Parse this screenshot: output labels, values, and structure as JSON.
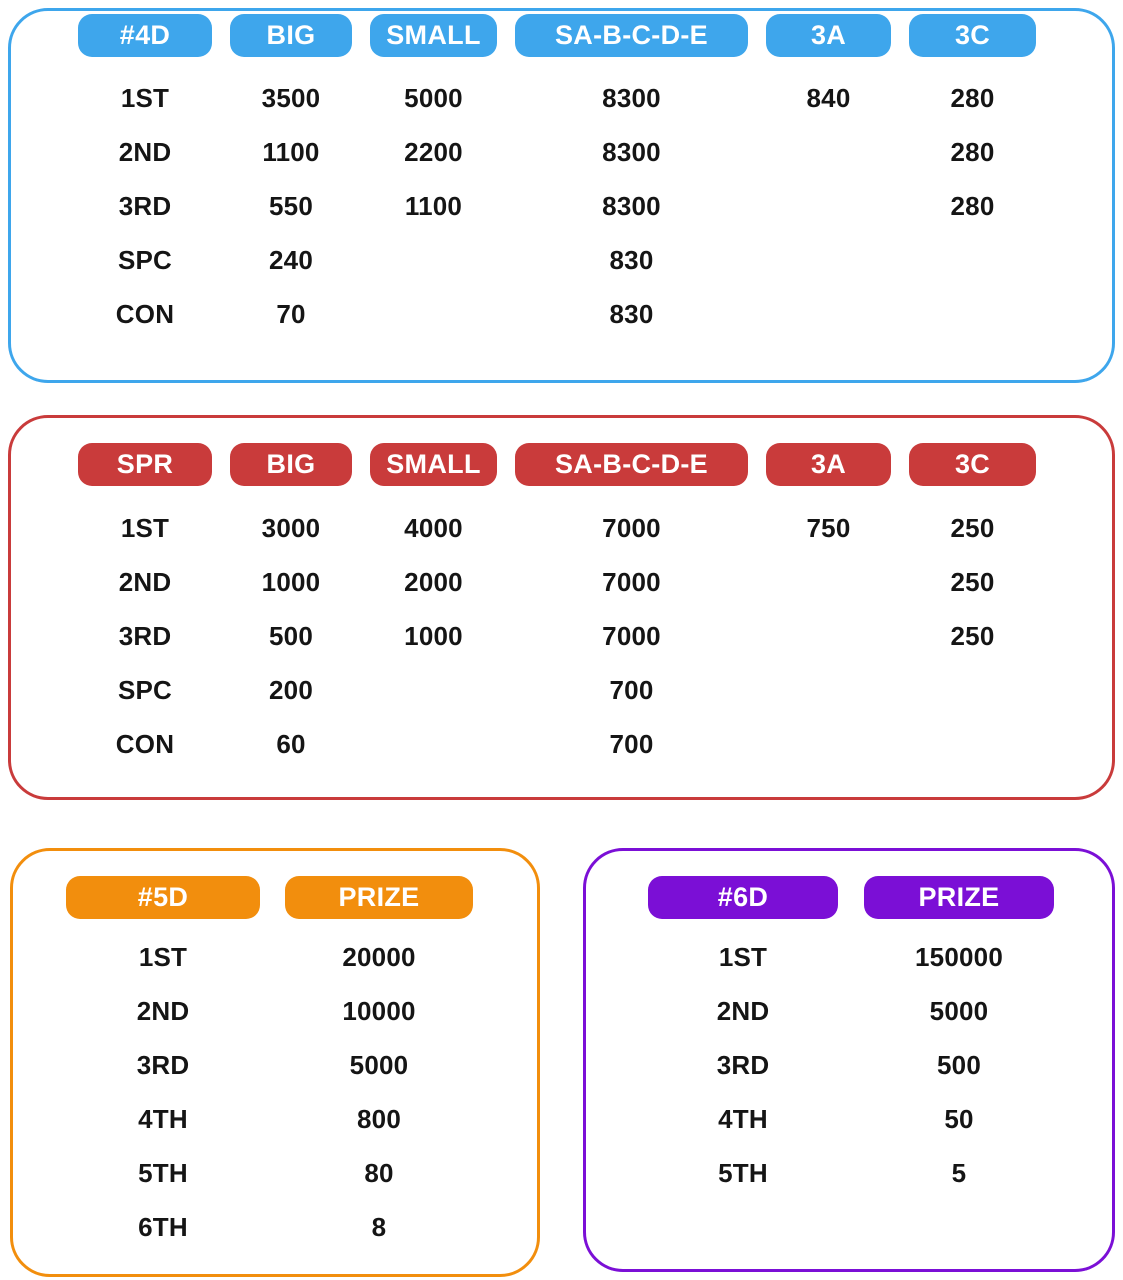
{
  "colors": {
    "blue_accent": "#3EA6EC",
    "red_accent": "#C93B3B",
    "orange_accent": "#F28E0D",
    "purple_accent": "#7B0FD6",
    "text": "#151515",
    "header_text": "#FFFFFF",
    "background": "#FFFFFF"
  },
  "d4": {
    "headers": [
      "#4D",
      "BIG",
      "SMALL",
      "SA-B-C-D-E",
      "3A",
      "3C"
    ],
    "rows": [
      {
        "label": "1ST",
        "values": [
          "3500",
          "5000",
          "8300",
          "840",
          "280"
        ]
      },
      {
        "label": "2ND",
        "values": [
          "1100",
          "2200",
          "8300",
          "",
          "280"
        ]
      },
      {
        "label": "3RD",
        "values": [
          "550",
          "1100",
          "8300",
          "",
          "280"
        ]
      },
      {
        "label": "SPC",
        "values": [
          "240",
          "",
          "830",
          "",
          ""
        ]
      },
      {
        "label": "CON",
        "values": [
          "70",
          "",
          "830",
          "",
          ""
        ]
      }
    ]
  },
  "spr": {
    "headers": [
      "SPR",
      "BIG",
      "SMALL",
      "SA-B-C-D-E",
      "3A",
      "3C"
    ],
    "rows": [
      {
        "label": "1ST",
        "values": [
          "3000",
          "4000",
          "7000",
          "750",
          "250"
        ]
      },
      {
        "label": "2ND",
        "values": [
          "1000",
          "2000",
          "7000",
          "",
          "250"
        ]
      },
      {
        "label": "3RD",
        "values": [
          "500",
          "1000",
          "7000",
          "",
          "250"
        ]
      },
      {
        "label": "SPC",
        "values": [
          "200",
          "",
          "700",
          "",
          ""
        ]
      },
      {
        "label": "CON",
        "values": [
          "60",
          "",
          "700",
          "",
          ""
        ]
      }
    ]
  },
  "d5": {
    "headers": [
      "#5D",
      "PRIZE"
    ],
    "rows": [
      {
        "label": "1ST",
        "prize": "20000"
      },
      {
        "label": "2ND",
        "prize": "10000"
      },
      {
        "label": "3RD",
        "prize": "5000"
      },
      {
        "label": "4TH",
        "prize": "800"
      },
      {
        "label": "5TH",
        "prize": "80"
      },
      {
        "label": "6TH",
        "prize": "8"
      }
    ]
  },
  "d6": {
    "headers": [
      "#6D",
      "PRIZE"
    ],
    "rows": [
      {
        "label": "1ST",
        "prize": "150000"
      },
      {
        "label": "2ND",
        "prize": "5000"
      },
      {
        "label": "3RD",
        "prize": "500"
      },
      {
        "label": "4TH",
        "prize": "50"
      },
      {
        "label": "5TH",
        "prize": "5"
      }
    ]
  }
}
